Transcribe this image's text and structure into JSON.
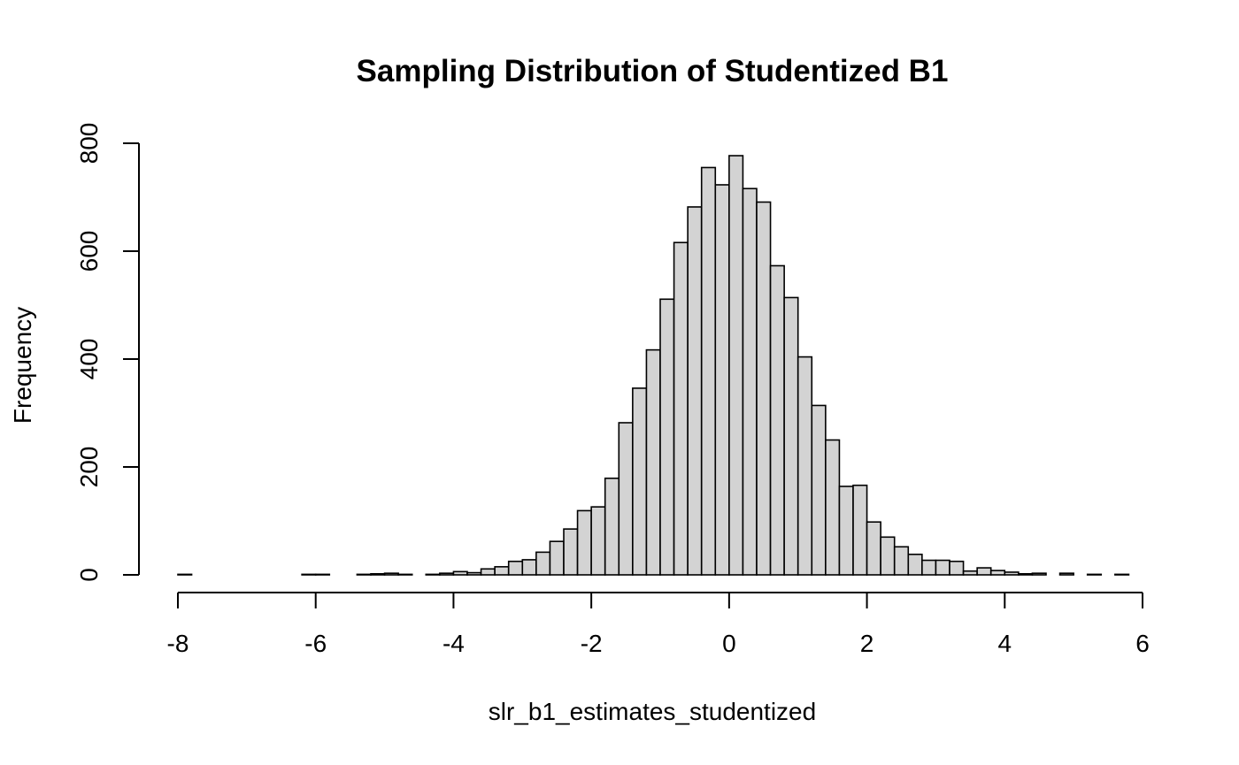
{
  "chart_data": {
    "type": "bar",
    "title": "Sampling Distribution of Studentized B1",
    "xlabel": "slr_b1_estimates_studentized",
    "ylabel": "Frequency",
    "bin_width": 0.2,
    "xlim": [
      -8,
      6
    ],
    "ylim": [
      0,
      800
    ],
    "x_ticks": [
      "-8",
      "-6",
      "-4",
      "-2",
      "0",
      "2",
      "4",
      "6"
    ],
    "y_ticks": [
      "0",
      "200",
      "400",
      "600",
      "800"
    ],
    "grid": false,
    "legend": "none",
    "bars": [
      {
        "x0": -8.0,
        "x1": -7.8,
        "count": 1
      },
      {
        "x0": -7.8,
        "x1": -7.6,
        "count": 0
      },
      {
        "x0": -7.6,
        "x1": -7.4,
        "count": 0
      },
      {
        "x0": -7.4,
        "x1": -7.2,
        "count": 0
      },
      {
        "x0": -7.2,
        "x1": -7.0,
        "count": 0
      },
      {
        "x0": -7.0,
        "x1": -6.8,
        "count": 0
      },
      {
        "x0": -6.8,
        "x1": -6.6,
        "count": 0
      },
      {
        "x0": -6.6,
        "x1": -6.4,
        "count": 0
      },
      {
        "x0": -6.4,
        "x1": -6.2,
        "count": 0
      },
      {
        "x0": -6.2,
        "x1": -6.0,
        "count": 1
      },
      {
        "x0": -6.0,
        "x1": -5.8,
        "count": 1
      },
      {
        "x0": -5.8,
        "x1": -5.6,
        "count": 0
      },
      {
        "x0": -5.6,
        "x1": -5.4,
        "count": 0
      },
      {
        "x0": -5.4,
        "x1": -5.2,
        "count": 1
      },
      {
        "x0": -5.2,
        "x1": -5.0,
        "count": 2
      },
      {
        "x0": -5.0,
        "x1": -4.8,
        "count": 3
      },
      {
        "x0": -4.8,
        "x1": -4.6,
        "count": 1
      },
      {
        "x0": -4.6,
        "x1": -4.4,
        "count": 0
      },
      {
        "x0": -4.4,
        "x1": -4.2,
        "count": 1
      },
      {
        "x0": -4.2,
        "x1": -4.0,
        "count": 3
      },
      {
        "x0": -4.0,
        "x1": -3.8,
        "count": 6
      },
      {
        "x0": -3.8,
        "x1": -3.6,
        "count": 4
      },
      {
        "x0": -3.6,
        "x1": -3.4,
        "count": 11
      },
      {
        "x0": -3.4,
        "x1": -3.2,
        "count": 15
      },
      {
        "x0": -3.2,
        "x1": -3.0,
        "count": 25
      },
      {
        "x0": -3.0,
        "x1": -2.8,
        "count": 28
      },
      {
        "x0": -2.8,
        "x1": -2.6,
        "count": 42
      },
      {
        "x0": -2.6,
        "x1": -2.4,
        "count": 62
      },
      {
        "x0": -2.4,
        "x1": -2.2,
        "count": 85
      },
      {
        "x0": -2.2,
        "x1": -2.0,
        "count": 119
      },
      {
        "x0": -2.0,
        "x1": -1.8,
        "count": 126
      },
      {
        "x0": -1.8,
        "x1": -1.6,
        "count": 179
      },
      {
        "x0": -1.6,
        "x1": -1.4,
        "count": 282
      },
      {
        "x0": -1.4,
        "x1": -1.2,
        "count": 346
      },
      {
        "x0": -1.2,
        "x1": -1.0,
        "count": 417
      },
      {
        "x0": -1.0,
        "x1": -0.8,
        "count": 511
      },
      {
        "x0": -0.8,
        "x1": -0.6,
        "count": 616
      },
      {
        "x0": -0.6,
        "x1": -0.4,
        "count": 682
      },
      {
        "x0": -0.4,
        "x1": -0.2,
        "count": 755
      },
      {
        "x0": -0.2,
        "x1": 0.0,
        "count": 723
      },
      {
        "x0": 0.0,
        "x1": 0.2,
        "count": 777
      },
      {
        "x0": 0.2,
        "x1": 0.4,
        "count": 716
      },
      {
        "x0": 0.4,
        "x1": 0.6,
        "count": 691
      },
      {
        "x0": 0.6,
        "x1": 0.8,
        "count": 573
      },
      {
        "x0": 0.8,
        "x1": 1.0,
        "count": 514
      },
      {
        "x0": 1.0,
        "x1": 1.2,
        "count": 404
      },
      {
        "x0": 1.2,
        "x1": 1.4,
        "count": 314
      },
      {
        "x0": 1.4,
        "x1": 1.6,
        "count": 250
      },
      {
        "x0": 1.6,
        "x1": 1.8,
        "count": 164
      },
      {
        "x0": 1.8,
        "x1": 2.0,
        "count": 166
      },
      {
        "x0": 2.0,
        "x1": 2.2,
        "count": 98
      },
      {
        "x0": 2.2,
        "x1": 2.4,
        "count": 70
      },
      {
        "x0": 2.4,
        "x1": 2.6,
        "count": 52
      },
      {
        "x0": 2.6,
        "x1": 2.8,
        "count": 38
      },
      {
        "x0": 2.8,
        "x1": 3.0,
        "count": 27
      },
      {
        "x0": 3.0,
        "x1": 3.2,
        "count": 27
      },
      {
        "x0": 3.2,
        "x1": 3.4,
        "count": 25
      },
      {
        "x0": 3.4,
        "x1": 3.6,
        "count": 7
      },
      {
        "x0": 3.6,
        "x1": 3.8,
        "count": 13
      },
      {
        "x0": 3.8,
        "x1": 4.0,
        "count": 8
      },
      {
        "x0": 4.0,
        "x1": 4.2,
        "count": 5
      },
      {
        "x0": 4.2,
        "x1": 4.4,
        "count": 2
      },
      {
        "x0": 4.4,
        "x1": 4.6,
        "count": 3
      },
      {
        "x0": 4.6,
        "x1": 4.8,
        "count": 0
      },
      {
        "x0": 4.8,
        "x1": 5.0,
        "count": 3
      },
      {
        "x0": 5.0,
        "x1": 5.2,
        "count": 0
      },
      {
        "x0": 5.2,
        "x1": 5.4,
        "count": 1
      },
      {
        "x0": 5.4,
        "x1": 5.6,
        "count": 0
      },
      {
        "x0": 5.6,
        "x1": 5.8,
        "count": 1
      }
    ],
    "colors": {
      "bar_fill": "#d3d3d3",
      "bar_stroke": "#000000",
      "background": "#ffffff"
    }
  }
}
